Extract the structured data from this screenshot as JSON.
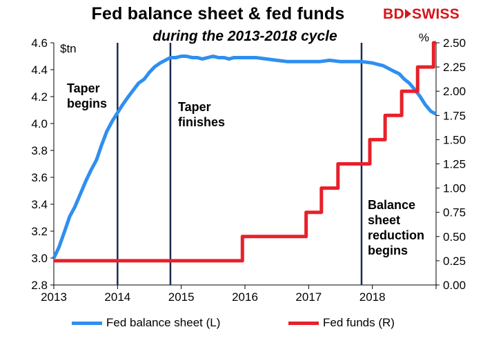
{
  "title": "Fed balance sheet & fed funds",
  "subtitle": "during the 2013-2018 cycle",
  "logo": {
    "left": "BD",
    "right": "SWISS",
    "color": "#d7141a"
  },
  "chart_data": {
    "type": "line",
    "x_ticks": [
      "2013",
      "2014",
      "2015",
      "2016",
      "2017",
      "2018"
    ],
    "xlim": [
      2013.0,
      2019.0
    ],
    "left_axis": {
      "unit": "$tn",
      "ylim": [
        2.8,
        4.6
      ],
      "ticks": [
        "2.8",
        "3.0",
        "3.2",
        "3.4",
        "3.6",
        "3.8",
        "4.0",
        "4.2",
        "4.4",
        "4.6"
      ]
    },
    "right_axis": {
      "unit": "%",
      "ylim": [
        0.0,
        2.5
      ],
      "ticks": [
        "0.00",
        "0.25",
        "0.50",
        "0.75",
        "1.00",
        "1.25",
        "1.50",
        "1.75",
        "2.00",
        "2.25",
        "2.50"
      ]
    },
    "grid": false,
    "legend_position": "bottom",
    "series": [
      {
        "name": "Fed balance sheet (L)",
        "axis": "left",
        "color": "#2f8ff0",
        "step": false,
        "x": [
          2013.0,
          2013.08,
          2013.17,
          2013.25,
          2013.33,
          2013.42,
          2013.5,
          2013.58,
          2013.67,
          2013.75,
          2013.83,
          2013.92,
          2014.0,
          2014.08,
          2014.17,
          2014.25,
          2014.33,
          2014.42,
          2014.5,
          2014.58,
          2014.67,
          2014.75,
          2014.83,
          2014.92,
          2015.0,
          2015.08,
          2015.17,
          2015.25,
          2015.33,
          2015.42,
          2015.5,
          2015.58,
          2015.67,
          2015.75,
          2015.83,
          2015.92,
          2016.0,
          2016.17,
          2016.33,
          2016.5,
          2016.67,
          2016.83,
          2017.0,
          2017.17,
          2017.33,
          2017.5,
          2017.67,
          2017.83,
          2018.0,
          2018.08,
          2018.17,
          2018.25,
          2018.33,
          2018.42,
          2018.5,
          2018.58,
          2018.67,
          2018.75,
          2018.83,
          2018.92,
          2019.0
        ],
        "values": [
          3.0,
          3.08,
          3.2,
          3.31,
          3.38,
          3.48,
          3.57,
          3.65,
          3.73,
          3.84,
          3.94,
          4.02,
          4.08,
          4.14,
          4.2,
          4.25,
          4.3,
          4.33,
          4.38,
          4.42,
          4.45,
          4.47,
          4.49,
          4.49,
          4.5,
          4.5,
          4.49,
          4.49,
          4.48,
          4.49,
          4.5,
          4.49,
          4.49,
          4.48,
          4.49,
          4.49,
          4.49,
          4.49,
          4.48,
          4.47,
          4.46,
          4.46,
          4.46,
          4.46,
          4.47,
          4.46,
          4.46,
          4.46,
          4.45,
          4.44,
          4.43,
          4.41,
          4.39,
          4.37,
          4.33,
          4.3,
          4.25,
          4.2,
          4.14,
          4.09,
          4.07
        ]
      },
      {
        "name": "Fed funds (R)",
        "axis": "right",
        "color": "#e8202a",
        "step": true,
        "x": [
          2013.0,
          2015.96,
          2016.96,
          2017.2,
          2017.46,
          2017.96,
          2018.2,
          2018.46,
          2018.71,
          2018.96,
          2019.0
        ],
        "values": [
          0.25,
          0.5,
          0.75,
          1.0,
          1.25,
          1.5,
          1.75,
          2.0,
          2.25,
          2.5,
          2.5
        ]
      }
    ],
    "annotations": [
      {
        "x": 2014.0,
        "lines": [
          "Taper",
          "begins"
        ]
      },
      {
        "x": 2014.83,
        "lines": [
          "Taper",
          "finishes"
        ]
      },
      {
        "x": 2017.83,
        "lines": [
          "Balance",
          "sheet",
          "reduction",
          "begins"
        ]
      }
    ]
  }
}
